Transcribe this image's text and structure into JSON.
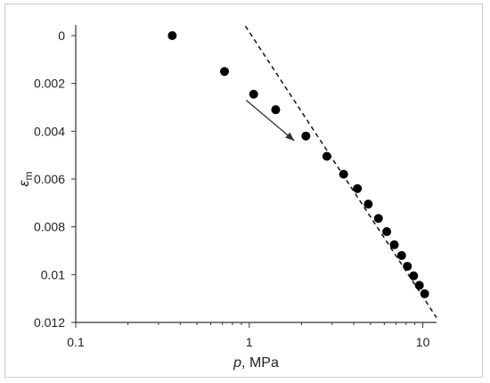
{
  "chart_data": {
    "type": "scatter",
    "xscale": "log",
    "xlim": [
      0.1,
      12
    ],
    "ylim": [
      0,
      0.012
    ],
    "y_inverted": true,
    "xlabel": {
      "italic": "p",
      "rest": ", MPa"
    },
    "ylabel": {
      "symbol": "ε",
      "subscript": "m"
    },
    "x_ticks": [
      0.1,
      1,
      10
    ],
    "x_tick_labels": [
      "0.1",
      "1",
      "10"
    ],
    "y_ticks": [
      0,
      0.002,
      0.004,
      0.006,
      0.008,
      0.01,
      0.012
    ],
    "y_tick_labels": [
      "0",
      "0.002",
      "0.004",
      "0.006",
      "0.008",
      "0.01",
      "0.012"
    ],
    "grid": false,
    "points": [
      {
        "x": 0.36,
        "y": 0.0
      },
      {
        "x": 0.72,
        "y": 0.0015
      },
      {
        "x": 1.06,
        "y": 0.00245
      },
      {
        "x": 1.42,
        "y": 0.0031
      },
      {
        "x": 2.12,
        "y": 0.0042
      },
      {
        "x": 2.8,
        "y": 0.00505
      },
      {
        "x": 3.5,
        "y": 0.0058
      },
      {
        "x": 4.2,
        "y": 0.0064
      },
      {
        "x": 4.85,
        "y": 0.00705
      },
      {
        "x": 5.55,
        "y": 0.00765
      },
      {
        "x": 6.2,
        "y": 0.0082
      },
      {
        "x": 6.85,
        "y": 0.00875
      },
      {
        "x": 7.55,
        "y": 0.0092
      },
      {
        "x": 8.15,
        "y": 0.00965
      },
      {
        "x": 8.85,
        "y": 0.01005
      },
      {
        "x": 9.55,
        "y": 0.01045
      },
      {
        "x": 10.25,
        "y": 0.0108
      }
    ],
    "fit_line": {
      "style": "dashed",
      "from": {
        "x": 0.95,
        "y": -0.0004
      },
      "to": {
        "x": 12,
        "y": 0.0118
      }
    },
    "arrow": {
      "from": {
        "x": 0.96,
        "y": 0.0027
      },
      "to": {
        "x": 1.82,
        "y": 0.0044
      }
    }
  }
}
